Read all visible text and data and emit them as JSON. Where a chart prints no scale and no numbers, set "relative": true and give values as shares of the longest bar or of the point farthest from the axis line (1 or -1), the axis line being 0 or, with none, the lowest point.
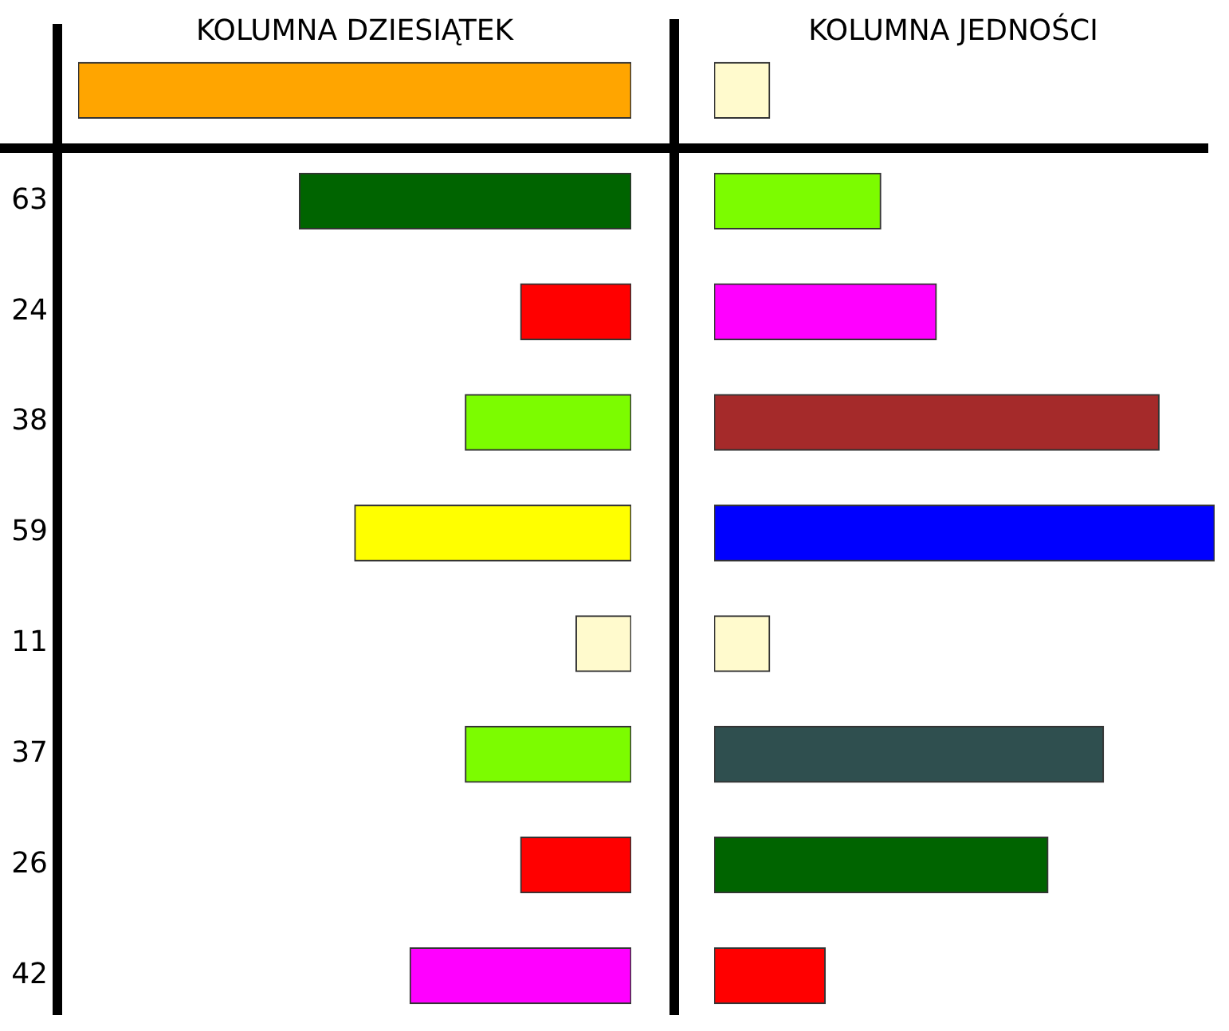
{
  "chart_data": [
    {
      "type": "bar",
      "orientation": "horizontal",
      "relative": true,
      "title": "KOLUMNA DZIESIĄTEK",
      "tick_labels": "y",
      "categories": [
        null,
        "63",
        "24",
        "38",
        "59",
        "11",
        "37",
        "26",
        "42"
      ],
      "values": [
        1,
        0.6,
        0.2,
        0.3,
        0.5,
        0.1,
        0.3,
        0.2,
        0.4
      ],
      "colors": [
        "#ffa500",
        "#006400",
        "#ff0000",
        "#7cfc00",
        "#ffff00",
        "#fffacd",
        "#7cfc00",
        "#ff0000",
        "#ff00ff"
      ]
    },
    {
      "type": "bar",
      "orientation": "horizontal",
      "relative": true,
      "title": "KOLUMNA JEDNOŚCI",
      "tick_labels": false,
      "categories": [
        null,
        "63",
        "24",
        "38",
        "59",
        "11",
        "37",
        "26",
        "42"
      ],
      "values": [
        0.111,
        0.333,
        0.444,
        0.889,
        1,
        0.111,
        0.778,
        0.667,
        0.222
      ],
      "colors": [
        "#fffacd",
        "#7cfc00",
        "#ff00ff",
        "#a52a2a",
        "#0000ff",
        "#fffacd",
        "#2f4f4f",
        "#006400",
        "#ff0000"
      ]
    }
  ]
}
